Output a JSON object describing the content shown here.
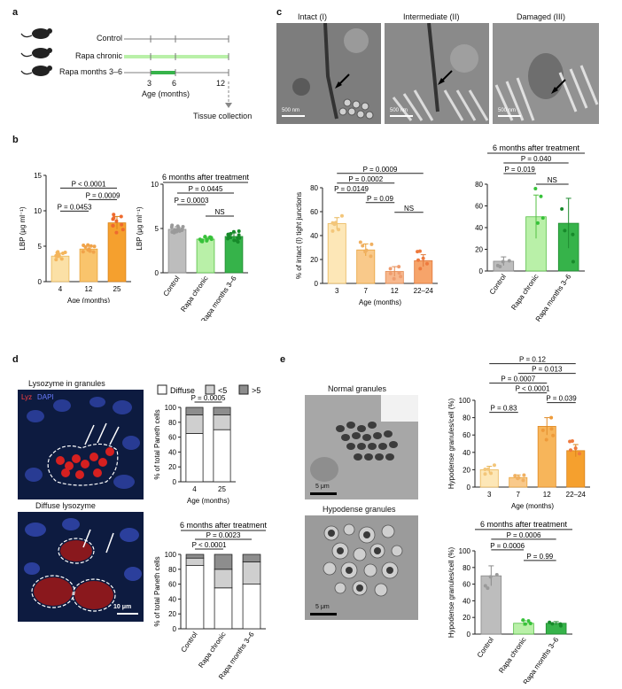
{
  "panels": {
    "a": {
      "label": "a",
      "groups": [
        "Control",
        "Rapa chronic",
        "Rapa months 3–6"
      ],
      "axis_ticks": [
        "3",
        "6",
        "12"
      ],
      "axis_label": "Age (months)",
      "endpoint": "Tissue collection"
    },
    "b": {
      "label": "b",
      "ylabel": "LBP (μg ml⁻¹)",
      "age_title": "",
      "treat_title": "6 months after treatment",
      "colors": {
        "c4": "#fbe0a6",
        "c12": "#f9c46c",
        "c25": "#f5a02e",
        "control": "#bdbdbd",
        "chronic": "#b9f0a8",
        "months": "#36b34a"
      }
    },
    "c": {
      "label": "c",
      "micro_titles": [
        "Intact (I)",
        "Intermediate (II)",
        "Damaged (III)"
      ],
      "scale_bars": [
        "500 nm",
        "500 nm",
        "500 nm"
      ],
      "ylabel": "% of intact (I) tight junctions",
      "treat_title": "6 months after treatment"
    },
    "d": {
      "label": "d",
      "img1_title": "Lysozyme in granules",
      "img2_title": "Diffuse lysozyme",
      "stain_lyz": "Lyz",
      "stain_dapi": "DAPI",
      "scale_bar": "10 μm",
      "legend": [
        "Diffuse",
        "<5",
        ">5"
      ],
      "ylabel": "% of total Paneth cells",
      "treat_title": "6 months after treatment"
    },
    "e": {
      "label": "e",
      "img1_title": "Normal granules",
      "img2_title": "Hypodense granules",
      "scale_bar": "5 μm",
      "ylabel": "Hypodense granules/cell (%)",
      "treat_title": "6 months after treatment"
    }
  },
  "chart_data": [
    {
      "id": "b-age",
      "type": "bar",
      "categories": [
        "4",
        "12",
        "25"
      ],
      "values": [
        3.6,
        4.6,
        8.3
      ],
      "errors": [
        0.4,
        0.4,
        0.9
      ],
      "ylim": [
        0,
        15
      ],
      "yticks": [
        0,
        5,
        10,
        15
      ],
      "xlabel": "Age (months)",
      "ylabel": "LBP (μg ml⁻¹)",
      "pvalues": [
        {
          "from": 0,
          "to": 1,
          "text": "P = 0.0453"
        },
        {
          "from": 1,
          "to": 2,
          "text": "P = 0.0009"
        },
        {
          "from": 0,
          "to": 2,
          "text": "P < 0.0001"
        }
      ]
    },
    {
      "id": "b-treat",
      "type": "bar",
      "categories": [
        "Control",
        "Rapa chronic",
        "Rapa months 3–6"
      ],
      "values": [
        4.9,
        3.8,
        4.1
      ],
      "errors": [
        0.3,
        0.2,
        0.4
      ],
      "ylim": [
        0,
        10
      ],
      "yticks": [
        0,
        5,
        10
      ],
      "title": "6 months after treatment",
      "ylabel": "LBP (μg ml⁻¹)",
      "pvalues": [
        {
          "from": 1,
          "to": 2,
          "text": "NS"
        },
        {
          "from": 0,
          "to": 1,
          "text": "P = 0.0003"
        },
        {
          "from": 0,
          "to": 2,
          "text": "P = 0.0445"
        }
      ]
    },
    {
      "id": "c-age",
      "type": "bar",
      "categories": [
        "3",
        "7",
        "12",
        "22–24"
      ],
      "values": [
        50,
        28,
        10,
        19
      ],
      "errors": [
        5,
        5,
        4,
        5
      ],
      "ylim": [
        0,
        80
      ],
      "yticks": [
        0,
        20,
        40,
        60,
        80
      ],
      "xlabel": "Age (months)",
      "ylabel": "% of intact (I) tight junctions",
      "pvalues": [
        {
          "from": 2,
          "to": 3,
          "text": "NS"
        },
        {
          "from": 1,
          "to": 2,
          "text": "P = 0.09"
        },
        {
          "from": 0,
          "to": 1,
          "text": "P = 0.0149"
        },
        {
          "from": 0,
          "to": 2,
          "text": "P = 0.0002"
        },
        {
          "from": 0,
          "to": 3,
          "text": "P = 0.0009"
        }
      ]
    },
    {
      "id": "c-treat",
      "type": "bar",
      "categories": [
        "Control",
        "Rapa chronic",
        "Rapa months 3–6"
      ],
      "values": [
        9,
        50,
        44
      ],
      "errors": [
        4,
        20,
        23
      ],
      "ylim": [
        0,
        80
      ],
      "yticks": [
        0,
        20,
        40,
        60,
        80
      ],
      "title": "6 months after treatment",
      "pvalues": [
        {
          "from": 1,
          "to": 2,
          "text": "NS"
        },
        {
          "from": 0,
          "to": 1,
          "text": "P = 0.019"
        },
        {
          "from": 0,
          "to": 2,
          "text": "P = 0.040"
        }
      ]
    },
    {
      "id": "d-age",
      "type": "bar",
      "stacked": true,
      "categories": [
        "4",
        "25"
      ],
      "series": [
        {
          "name": "Diffuse",
          "values": [
            65,
            70
          ]
        },
        {
          "name": "<5",
          "values": [
            25,
            20
          ]
        },
        {
          "name": ">5",
          "values": [
            10,
            10
          ]
        }
      ],
      "ylim": [
        0,
        100
      ],
      "yticks": [
        0,
        20,
        40,
        60,
        80,
        100
      ],
      "xlabel": "Age (months)",
      "ylabel": "% of total Paneth cells",
      "pvalues": [
        {
          "from": 0,
          "to": 1,
          "text": "P = 0.0005"
        }
      ]
    },
    {
      "id": "d-treat",
      "type": "bar",
      "stacked": true,
      "categories": [
        "Control",
        "Rapa chronic",
        "Rapa months 3–6"
      ],
      "series": [
        {
          "name": "Diffuse",
          "values": [
            85,
            55,
            60
          ]
        },
        {
          "name": "<5",
          "values": [
            10,
            25,
            30
          ]
        },
        {
          "name": ">5",
          "values": [
            5,
            20,
            10
          ]
        }
      ],
      "ylim": [
        0,
        100
      ],
      "yticks": [
        0,
        20,
        40,
        60,
        80,
        100
      ],
      "title": "6 months after treatment",
      "ylabel": "% of total Paneth cells",
      "pvalues": [
        {
          "from": 0,
          "to": 1,
          "text": "P < 0.0001"
        },
        {
          "from": 0,
          "to": 2,
          "text": "P = 0.0023"
        }
      ]
    },
    {
      "id": "e-age",
      "type": "bar",
      "categories": [
        "3",
        "7",
        "12",
        "22–24"
      ],
      "values": [
        20,
        11,
        70,
        42
      ],
      "errors": [
        4,
        3,
        10,
        7
      ],
      "ylim": [
        0,
        100
      ],
      "yticks": [
        0,
        20,
        40,
        60,
        80,
        100
      ],
      "xlabel": "Age (months)",
      "ylabel": "Hypodense granules/cell (%)",
      "pvalues": [
        {
          "from": 0,
          "to": 1,
          "text": "P = 0.83"
        },
        {
          "from": 2,
          "to": 3,
          "text": "P = 0.039"
        },
        {
          "from": 1,
          "to": 2,
          "text": "P < 0.0001"
        },
        {
          "from": 0,
          "to": 2,
          "text": "P = 0.0007"
        },
        {
          "from": 1,
          "to": 3,
          "text": "P = 0.013"
        },
        {
          "from": 0,
          "to": 3,
          "text": "P = 0.12"
        }
      ]
    },
    {
      "id": "e-treat",
      "type": "bar",
      "categories": [
        "Control",
        "Rapa chronic",
        "Rapa months 3–6"
      ],
      "values": [
        70,
        13,
        13
      ],
      "errors": [
        12,
        3,
        2
      ],
      "ylim": [
        0,
        100
      ],
      "yticks": [
        0,
        20,
        40,
        60,
        80,
        100
      ],
      "title": "6 months after treatment",
      "ylabel": "Hypodense granules/cell (%)",
      "pvalues": [
        {
          "from": 1,
          "to": 2,
          "text": "P = 0.99"
        },
        {
          "from": 0,
          "to": 1,
          "text": "P = 0.0006"
        },
        {
          "from": 0,
          "to": 2,
          "text": "P = 0.0006"
        }
      ]
    }
  ]
}
